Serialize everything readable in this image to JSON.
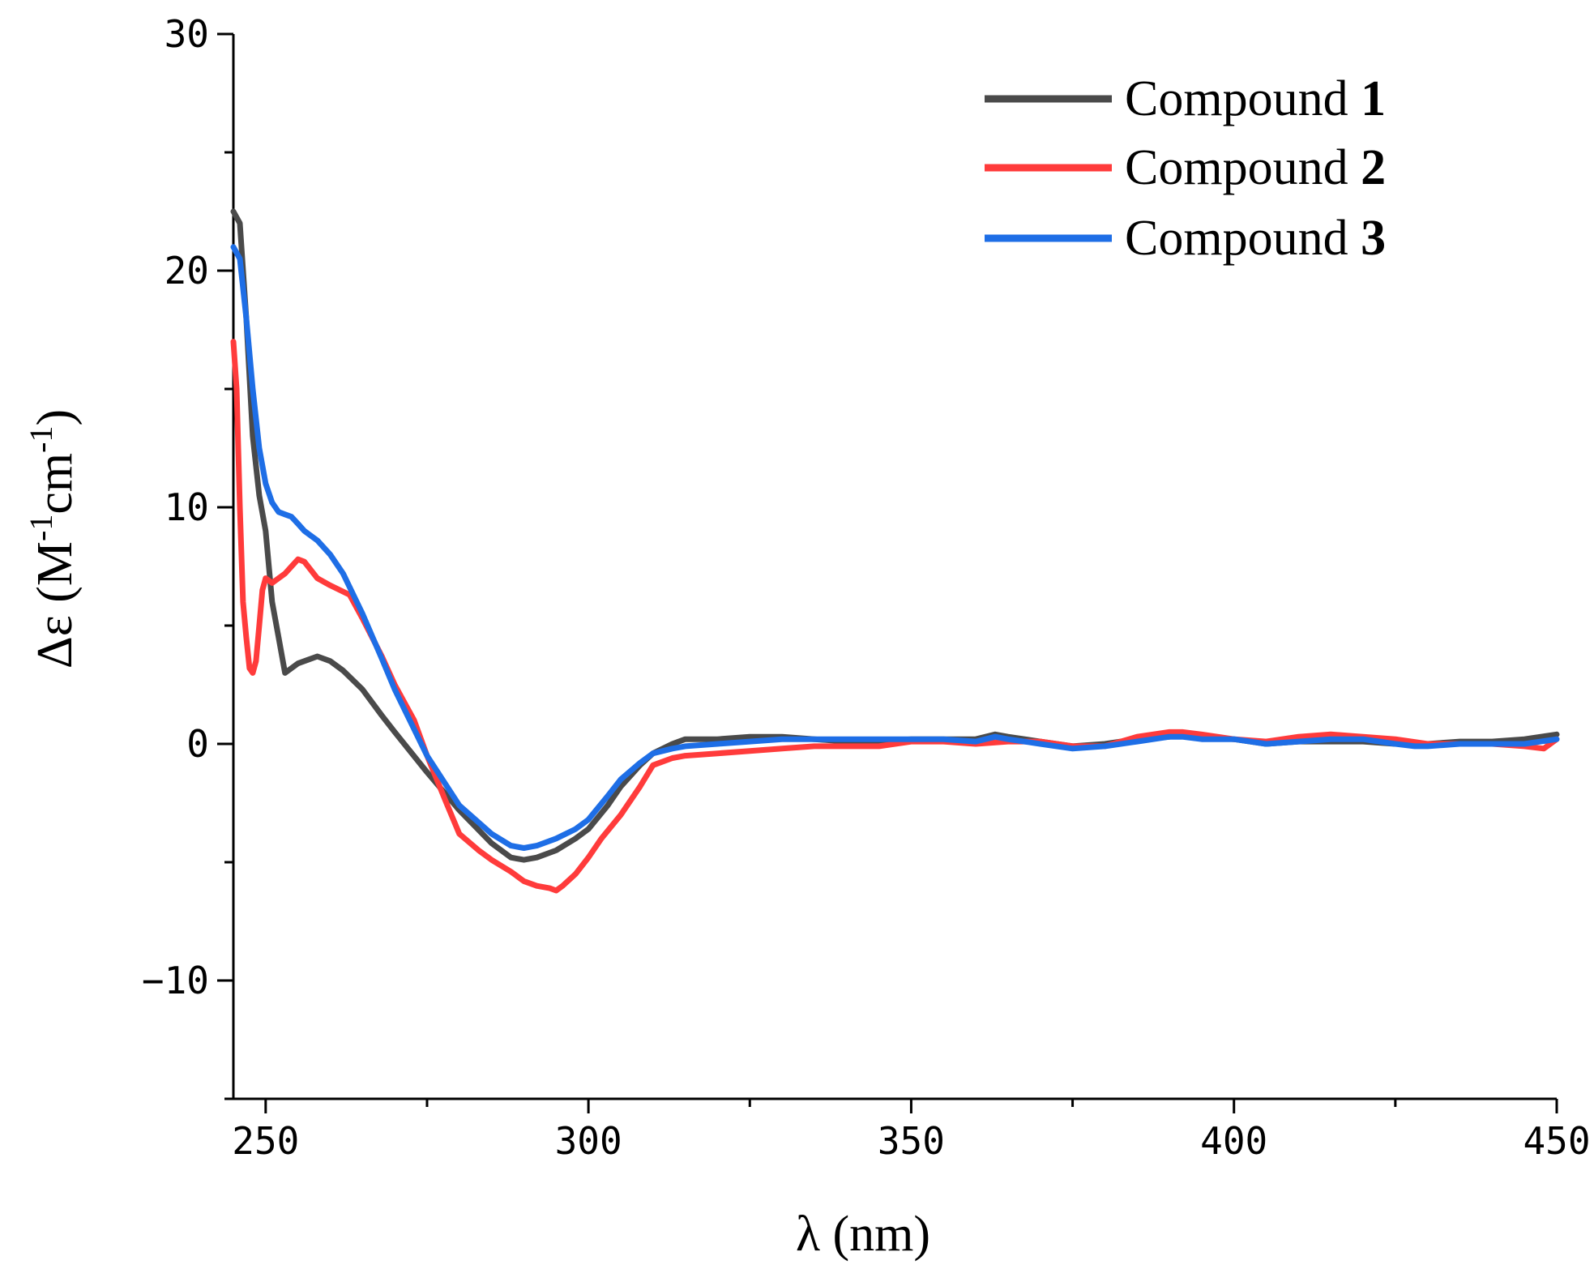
{
  "chart_data": {
    "type": "line",
    "title": "",
    "xlabel": "λ (nm)",
    "ylabel_parts": {
      "prefix": "Δε (M",
      "sup1": "-1",
      "mid": "cm",
      "sup2": "-1",
      "suffix": ")"
    },
    "xlim": [
      245,
      450
    ],
    "ylim": [
      -15,
      30
    ],
    "x_ticks": [
      250,
      300,
      350,
      400,
      450
    ],
    "x_tick_labels": [
      "250",
      "300",
      "350",
      "400",
      "450"
    ],
    "x_minor_ticks": [
      275,
      325,
      375,
      425
    ],
    "y_ticks": [
      -10,
      0,
      10,
      20,
      30
    ],
    "y_tick_labels": [
      "−10",
      "0",
      "10",
      "20",
      "30"
    ],
    "y_minor_ticks": [
      -15,
      -5,
      5,
      15,
      25
    ],
    "grid": false,
    "legend_position": "top-right",
    "series": [
      {
        "name": "Compound",
        "number": "1",
        "color": "#4a4a4a",
        "x": [
          245,
          246,
          247,
          248,
          249,
          250,
          251,
          252,
          253,
          254,
          255,
          256,
          258,
          260,
          262,
          265,
          268,
          270,
          275,
          280,
          285,
          288,
          290,
          292,
          295,
          298,
          300,
          303,
          305,
          308,
          310,
          313,
          315,
          320,
          325,
          330,
          335,
          340,
          345,
          350,
          355,
          360,
          363,
          365,
          370,
          375,
          380,
          385,
          390,
          392,
          395,
          400,
          405,
          410,
          415,
          420,
          425,
          430,
          435,
          440,
          445,
          450
        ],
        "y": [
          22.5,
          22,
          18,
          13,
          10.5,
          9,
          6,
          4.5,
          3,
          3.2,
          3.4,
          3.5,
          3.7,
          3.5,
          3.1,
          2.3,
          1.2,
          0.5,
          -1.2,
          -2.8,
          -4.2,
          -4.8,
          -4.9,
          -4.8,
          -4.5,
          -4.0,
          -3.6,
          -2.6,
          -1.8,
          -0.9,
          -0.4,
          0,
          0.2,
          0.2,
          0.3,
          0.3,
          0.2,
          0.1,
          0.1,
          0.2,
          0.2,
          0.2,
          0.4,
          0.3,
          0.1,
          -0.1,
          0.0,
          0.2,
          0.3,
          0.4,
          0.3,
          0.2,
          0.0,
          0.1,
          0.1,
          0.1,
          0.0,
          0.0,
          0.1,
          0.1,
          0.2,
          0.4
        ]
      },
      {
        "name": "Compound",
        "number": "2",
        "color": "#ff3b3b",
        "x": [
          245,
          245.5,
          246,
          246.5,
          247,
          247.5,
          248,
          248.5,
          249,
          249.5,
          250,
          251,
          252,
          253,
          254,
          255,
          256,
          258,
          260,
          263,
          265,
          268,
          270,
          273,
          275,
          278,
          280,
          283,
          285,
          288,
          290,
          292,
          294,
          295,
          296,
          298,
          300,
          302,
          305,
          308,
          310,
          313,
          315,
          320,
          325,
          330,
          335,
          340,
          345,
          350,
          355,
          360,
          365,
          370,
          375,
          380,
          385,
          390,
          392,
          395,
          400,
          405,
          410,
          415,
          420,
          425,
          430,
          435,
          440,
          445,
          448,
          450
        ],
        "y": [
          17,
          15,
          10,
          6,
          4.5,
          3.2,
          3.0,
          3.5,
          5,
          6.5,
          7,
          6.8,
          7,
          7.2,
          7.5,
          7.8,
          7.7,
          7.0,
          6.7,
          6.3,
          5.3,
          3.7,
          2.5,
          1.0,
          -0.5,
          -2.5,
          -3.8,
          -4.5,
          -4.9,
          -5.4,
          -5.8,
          -6.0,
          -6.1,
          -6.2,
          -6.0,
          -5.5,
          -4.8,
          -4.0,
          -3.0,
          -1.8,
          -0.9,
          -0.6,
          -0.5,
          -0.4,
          -0.3,
          -0.2,
          -0.1,
          -0.1,
          -0.1,
          0.1,
          0.1,
          0.0,
          0.1,
          0.1,
          -0.1,
          -0.1,
          0.3,
          0.5,
          0.5,
          0.4,
          0.2,
          0.1,
          0.3,
          0.4,
          0.3,
          0.2,
          0.0,
          0.0,
          0.0,
          -0.1,
          -0.2,
          0.2
        ]
      },
      {
        "name": "Compound",
        "number": "3",
        "color": "#1e6ee6",
        "x": [
          245,
          246,
          247,
          248,
          249,
          250,
          251,
          252,
          253,
          254,
          255,
          256,
          258,
          260,
          262,
          265,
          268,
          270,
          275,
          280,
          285,
          288,
          290,
          292,
          295,
          298,
          300,
          303,
          305,
          308,
          310,
          313,
          315,
          320,
          325,
          330,
          335,
          340,
          345,
          350,
          355,
          360,
          363,
          365,
          370,
          375,
          380,
          385,
          390,
          392,
          395,
          400,
          405,
          410,
          415,
          420,
          425,
          428,
          430,
          435,
          440,
          445,
          450
        ],
        "y": [
          21,
          20.5,
          18,
          15,
          12.5,
          11,
          10.2,
          9.8,
          9.7,
          9.6,
          9.3,
          9.0,
          8.6,
          8.0,
          7.2,
          5.5,
          3.6,
          2.3,
          -0.5,
          -2.6,
          -3.8,
          -4.3,
          -4.4,
          -4.3,
          -4.0,
          -3.6,
          -3.2,
          -2.2,
          -1.5,
          -0.8,
          -0.4,
          -0.2,
          -0.1,
          0.0,
          0.1,
          0.2,
          0.2,
          0.2,
          0.2,
          0.2,
          0.2,
          0.1,
          0.3,
          0.2,
          0.0,
          -0.2,
          -0.1,
          0.1,
          0.3,
          0.3,
          0.2,
          0.2,
          0.0,
          0.1,
          0.2,
          0.2,
          0.0,
          -0.1,
          -0.1,
          0.0,
          0.0,
          0.0,
          0.2
        ]
      }
    ]
  }
}
